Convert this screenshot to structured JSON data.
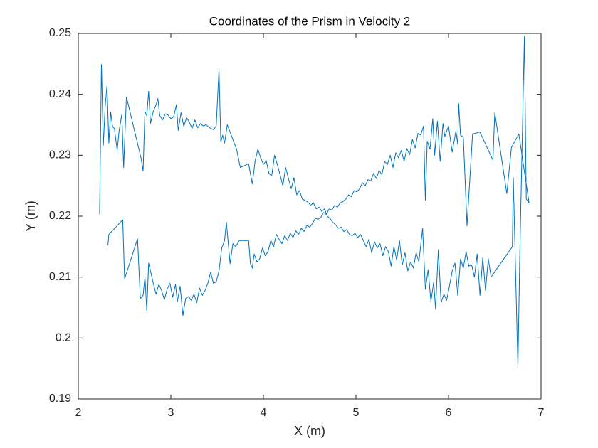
{
  "chart_data": {
    "type": "line",
    "title": "Coordinates of the Prism in Velocity 2",
    "x_label": "X (m)",
    "y_label": "Y (m)",
    "x": [
      2.23,
      2.25,
      2.27,
      2.29,
      2.31,
      2.33,
      2.35,
      2.37,
      2.39,
      2.42,
      2.44,
      2.47,
      2.49,
      2.52,
      2.68,
      2.7,
      2.72,
      2.74,
      2.76,
      2.78,
      2.81,
      2.84,
      2.86,
      2.88,
      2.91,
      2.94,
      2.97,
      3.0,
      3.03,
      3.06,
      3.08,
      3.11,
      3.14,
      3.17,
      3.2,
      3.23,
      3.26,
      3.29,
      3.32,
      3.35,
      3.38,
      3.42,
      3.46,
      3.49,
      3.52,
      3.54,
      3.56,
      3.58,
      3.61,
      3.66,
      3.71,
      3.75,
      3.84,
      3.88,
      3.91,
      3.94,
      3.97,
      4.0,
      4.03,
      4.06,
      4.09,
      4.12,
      4.15,
      4.18,
      4.21,
      4.24,
      4.27,
      4.3,
      4.33,
      4.36,
      4.39,
      4.42,
      4.45,
      4.48,
      4.51,
      4.54,
      4.57,
      4.6,
      4.63,
      4.66,
      4.69,
      4.72,
      4.75,
      4.78,
      4.81,
      4.84,
      4.87,
      4.9,
      4.93,
      4.96,
      4.99,
      5.02,
      5.05,
      5.08,
      5.11,
      5.14,
      5.17,
      5.2,
      5.23,
      5.26,
      5.29,
      5.32,
      5.35,
      5.38,
      5.41,
      5.44,
      5.47,
      5.5,
      5.53,
      5.56,
      5.59,
      5.62,
      5.65,
      5.68,
      5.72,
      5.75,
      5.78,
      5.81,
      5.84,
      5.86,
      5.89,
      5.92,
      5.95,
      5.98,
      6.01,
      6.04,
      6.07,
      6.1,
      6.13,
      6.16,
      6.19,
      6.22,
      6.25,
      6.28,
      6.31,
      6.34,
      6.37,
      6.4,
      6.43,
      6.46,
      6.69,
      6.7,
      6.75,
      6.77,
      6.82,
      6.84,
      6.87,
      6.76,
      6.68,
      6.63,
      6.5,
      6.48,
      6.34,
      6.26,
      6.2,
      6.16,
      6.13,
      6.11,
      6.1,
      6.08,
      6.04,
      6.0,
      5.96,
      5.94,
      5.91,
      5.88,
      5.85,
      5.83,
      5.8,
      5.77,
      5.75,
      5.73,
      5.7,
      5.67,
      5.64,
      5.61,
      5.58,
      5.55,
      5.52,
      5.49,
      5.46,
      5.43,
      5.4,
      5.37,
      5.34,
      5.31,
      5.28,
      5.25,
      5.22,
      5.19,
      5.16,
      5.13,
      5.1,
      5.07,
      5.04,
      5.01,
      4.98,
      4.95,
      4.92,
      4.89,
      4.86,
      4.83,
      4.8,
      4.77,
      4.74,
      4.71,
      4.68,
      4.65,
      4.62,
      4.59,
      4.56,
      4.53,
      4.5,
      4.47,
      4.44,
      4.41,
      4.38,
      4.35,
      4.32,
      4.29,
      4.26,
      4.23,
      4.2,
      4.17,
      4.14,
      4.11,
      4.08,
      4.05,
      4.02,
      3.99,
      3.96,
      3.93,
      3.9,
      3.88,
      3.86,
      3.84,
      3.74,
      3.7,
      3.67,
      3.64,
      3.6,
      3.58,
      3.55,
      3.52,
      3.49,
      3.46,
      3.43,
      3.4,
      3.37,
      3.34,
      3.31,
      3.28,
      3.25,
      3.22,
      3.19,
      3.16,
      3.13,
      3.1,
      3.07,
      3.05,
      3.02,
      2.99,
      2.96,
      2.93,
      2.9,
      2.87,
      2.84,
      2.81,
      2.78,
      2.76,
      2.74,
      2.72,
      2.7,
      2.67,
      2.64,
      2.5,
      2.48,
      2.33,
      2.32
    ],
    "series": [
      {
        "color": "#0072bd",
        "values": [
          0.2203,
          0.2449,
          0.2316,
          0.238,
          0.2414,
          0.232,
          0.2371,
          0.2347,
          0.2344,
          0.2308,
          0.2339,
          0.2367,
          0.228,
          0.2396,
          0.2294,
          0.2274,
          0.2372,
          0.2365,
          0.2405,
          0.2352,
          0.2372,
          0.2383,
          0.2393,
          0.2365,
          0.2358,
          0.2368,
          0.2366,
          0.236,
          0.2363,
          0.2383,
          0.2341,
          0.237,
          0.2347,
          0.2362,
          0.2354,
          0.2344,
          0.2358,
          0.2345,
          0.2352,
          0.2348,
          0.235,
          0.2345,
          0.2342,
          0.2348,
          0.2441,
          0.2322,
          0.2333,
          0.232,
          0.235,
          0.233,
          0.231,
          0.228,
          0.2286,
          0.2253,
          0.229,
          0.231,
          0.2296,
          0.2285,
          0.2291,
          0.227,
          0.2266,
          0.23,
          0.2285,
          0.2268,
          0.225,
          0.228,
          0.2262,
          0.2245,
          0.2263,
          0.2235,
          0.2242,
          0.2228,
          0.2226,
          0.2223,
          0.2218,
          0.2222,
          0.2212,
          0.2215,
          0.2208,
          0.2212,
          0.22,
          0.2196,
          0.219,
          0.2186,
          0.218,
          0.2182,
          0.2175,
          0.2178,
          0.217,
          0.2168,
          0.2172,
          0.2165,
          0.217,
          0.216,
          0.215,
          0.2162,
          0.214,
          0.2158,
          0.2148,
          0.2155,
          0.2135,
          0.215,
          0.2142,
          0.2118,
          0.215,
          0.2128,
          0.216,
          0.212,
          0.214,
          0.211,
          0.2125,
          0.2115,
          0.214,
          0.2125,
          0.218,
          0.208,
          0.2112,
          0.206,
          0.2092,
          0.2048,
          0.2145,
          0.2058,
          0.2072,
          0.2062,
          0.2085,
          0.211,
          0.2123,
          0.207,
          0.213,
          0.2115,
          0.2142,
          0.2118,
          0.212,
          0.21,
          0.2138,
          0.207,
          0.2132,
          0.2078,
          0.213,
          0.21,
          0.215,
          0.2263,
          0.1952,
          0.2133,
          0.2495,
          0.2228,
          0.2222,
          0.2335,
          0.2313,
          0.2237,
          0.237,
          0.2292,
          0.2338,
          0.2335,
          0.2184,
          0.233,
          0.2333,
          0.2385,
          0.2318,
          0.234,
          0.2305,
          0.2348,
          0.2331,
          0.2352,
          0.229,
          0.2356,
          0.23,
          0.236,
          0.231,
          0.2323,
          0.2226,
          0.2348,
          0.2333,
          0.2336,
          0.2312,
          0.2326,
          0.2301,
          0.2311,
          0.229,
          0.2308,
          0.2296,
          0.2304,
          0.228,
          0.23,
          0.2285,
          0.229,
          0.2268,
          0.2275,
          0.2262,
          0.227,
          0.2258,
          0.226,
          0.225,
          0.2255,
          0.2245,
          0.224,
          0.2242,
          0.2232,
          0.2235,
          0.2228,
          0.2224,
          0.2222,
          0.2215,
          0.2218,
          0.221,
          0.2212,
          0.2203,
          0.2206,
          0.2198,
          0.2195,
          0.2196,
          0.2188,
          0.2182,
          0.2185,
          0.2175,
          0.218,
          0.217,
          0.2176,
          0.2165,
          0.2172,
          0.216,
          0.2168,
          0.2155,
          0.2162,
          0.217,
          0.215,
          0.216,
          0.2142,
          0.2135,
          0.2148,
          0.213,
          0.2125,
          0.2138,
          0.2115,
          0.2122,
          0.216,
          0.216,
          0.215,
          0.2155,
          0.2122,
          0.219,
          0.216,
          0.2148,
          0.211,
          0.2092,
          0.209,
          0.2108,
          0.209,
          0.2078,
          0.207,
          0.2082,
          0.2058,
          0.2072,
          0.2062,
          0.2068,
          0.2065,
          0.2037,
          0.2085,
          0.206,
          0.2088,
          0.2067,
          0.209,
          0.208,
          0.2063,
          0.2078,
          0.2088,
          0.2072,
          0.209,
          0.211,
          0.2123,
          0.2045,
          0.21,
          0.207,
          0.2065,
          0.2163,
          0.2097,
          0.2194,
          0.217,
          0.2152
        ]
      }
    ],
    "xlim": [
      2,
      7
    ],
    "xticks": [
      2,
      3,
      4,
      5,
      6,
      7
    ],
    "ylim": [
      0.19,
      0.25
    ],
    "yticks": [
      0.19,
      0.2,
      0.21,
      0.22,
      0.23,
      0.24,
      0.25
    ],
    "grid": false
  }
}
